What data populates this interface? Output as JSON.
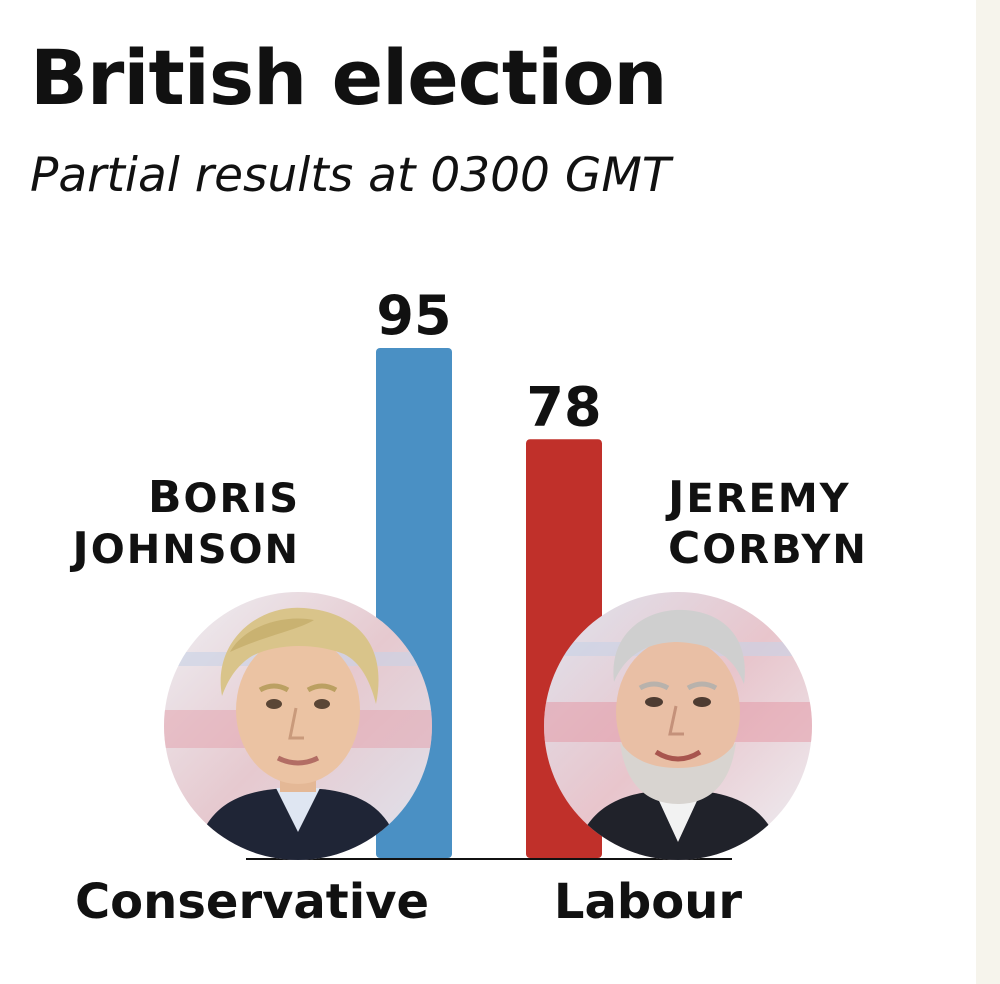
{
  "header": {
    "title": "British election",
    "subtitle": "Partial results at 0300 GMT"
  },
  "candidates": [
    {
      "first": "Boris",
      "last": "Johnson",
      "party": "Conservative"
    },
    {
      "first": "Jeremy",
      "last": "Corbyn",
      "party": "Labour"
    }
  ],
  "colors": {
    "conservative": "#4a90c4",
    "labour": "#c0302a",
    "text": "#111111"
  },
  "chart_data": {
    "type": "bar",
    "title": "British election",
    "subtitle": "Partial results at 0300 GMT",
    "categories": [
      "Conservative",
      "Labour"
    ],
    "values": [
      95,
      78
    ],
    "data_labels": [
      "95",
      "78"
    ],
    "ylim": [
      0,
      95
    ],
    "grid": false
  }
}
